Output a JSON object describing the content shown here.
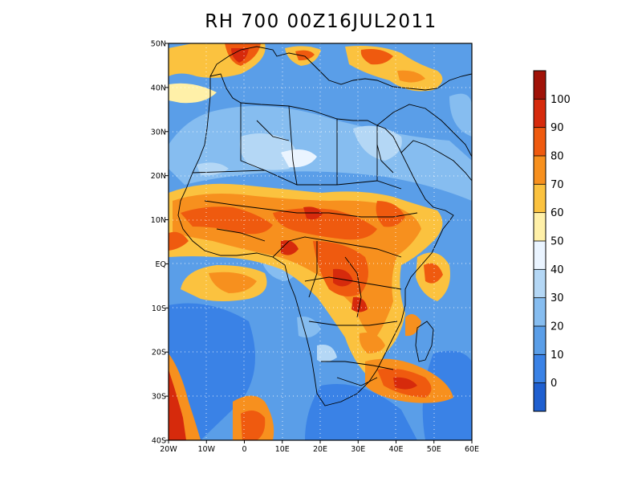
{
  "title": "RH 700 00Z16JUL2011",
  "map": {
    "lat_labels": [
      "50N",
      "40N",
      "30N",
      "20N",
      "10N",
      "EQ",
      "10S",
      "20S",
      "30S",
      "40S"
    ],
    "lon_labels": [
      "20W",
      "10W",
      "0",
      "10E",
      "20E",
      "30E",
      "40E",
      "50E",
      "60E"
    ],
    "extent": {
      "lon_min": -20,
      "lon_max": 60,
      "lat_min": -40,
      "lat_max": 50
    }
  },
  "colorbar": {
    "labels": [
      "0",
      "10",
      "20",
      "30",
      "40",
      "50",
      "60",
      "70",
      "80",
      "90",
      "100"
    ],
    "colors": [
      "#1f5fd0",
      "#3a82e6",
      "#5a9ee8",
      "#86bdf0",
      "#b4d7f5",
      "#eaf4ff",
      "#fff0a8",
      "#fbc23f",
      "#f7901e",
      "#ef5a0f",
      "#d62a0c",
      "#a01208"
    ]
  }
}
